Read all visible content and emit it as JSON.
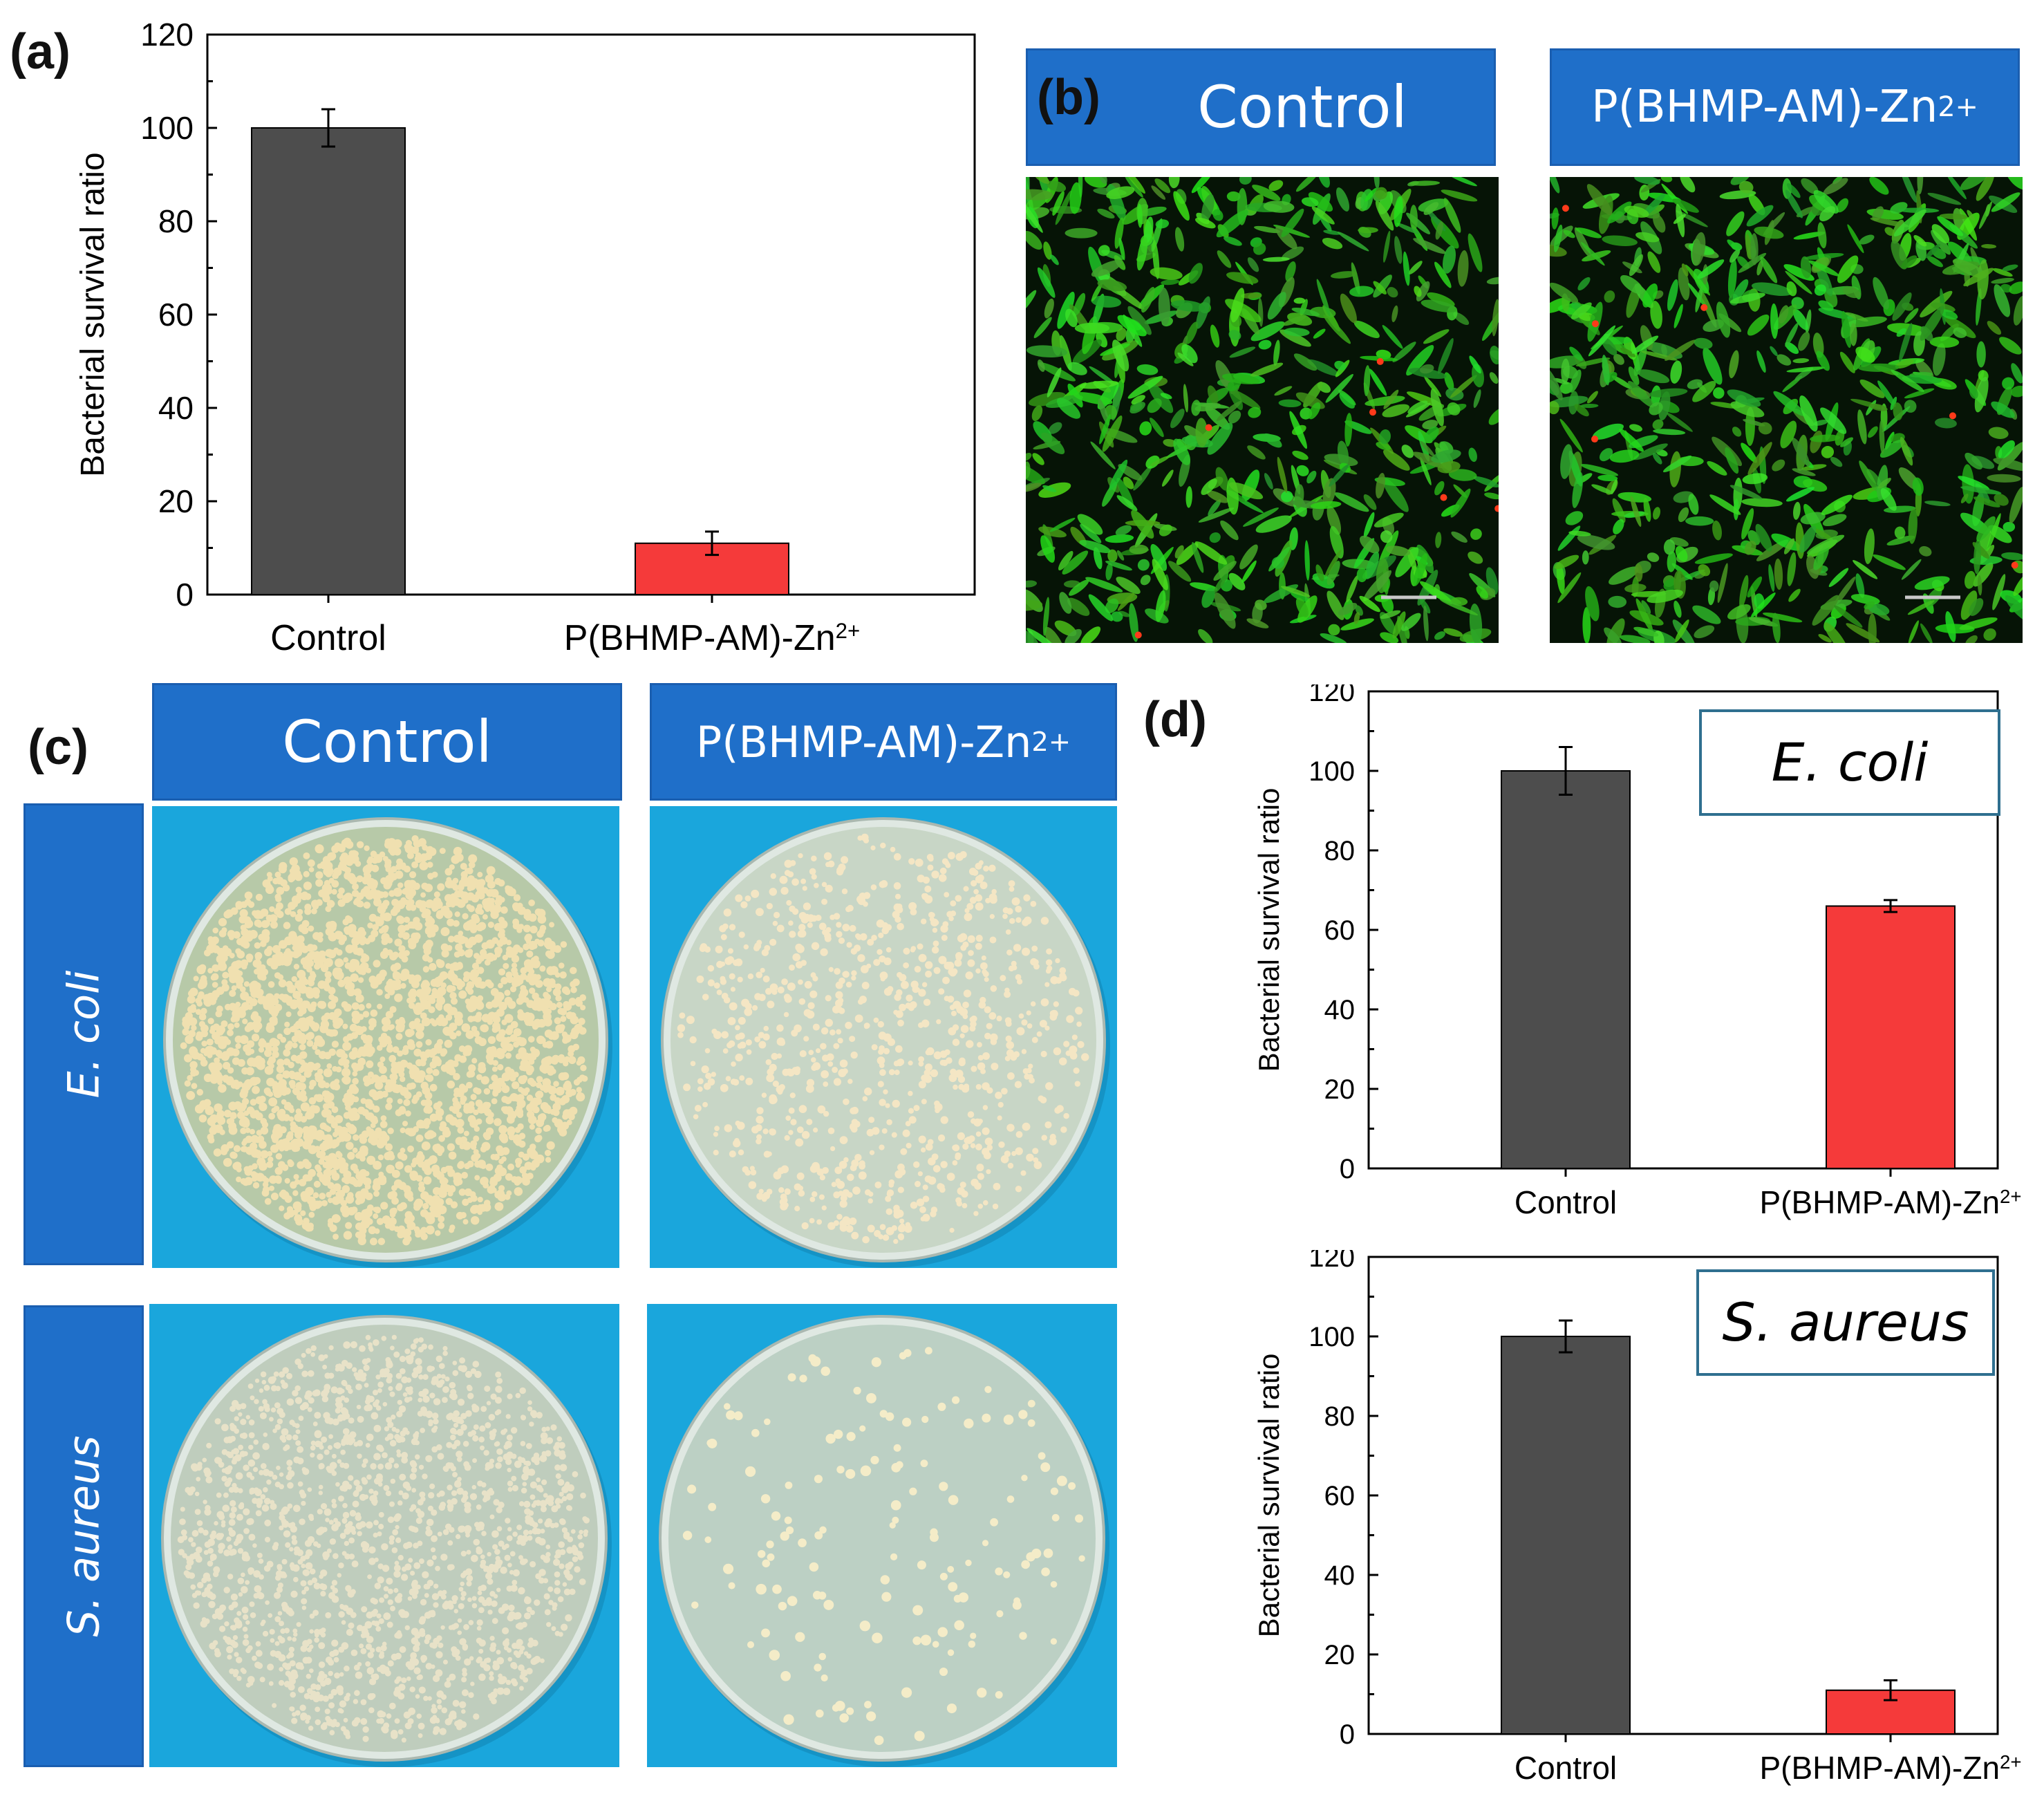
{
  "panels": {
    "a": "(a)",
    "b": "(b)",
    "c": "(c)",
    "d": "(d)"
  },
  "panel_b": {
    "headers": [
      {
        "base": "Control",
        "sup": ""
      },
      {
        "base": "P(BHMP-AM)-Zn",
        "sup": "2+"
      }
    ]
  },
  "panel_c": {
    "col_headers": [
      {
        "base": "Control",
        "sup": ""
      },
      {
        "base": "P(BHMP-AM)-Zn",
        "sup": "2+"
      }
    ],
    "row_headers": [
      "E. coli",
      "S. aureus"
    ]
  },
  "colors": {
    "control_bar": "#4d4d4d",
    "treated_bar": "#f53a3a",
    "header_blue": "#1f6fc9",
    "agar_bg": "#1aa6dc",
    "fluor_green": "#3cc23a"
  },
  "chart_data": [
    {
      "id": "a",
      "type": "bar",
      "categories": [
        "Control",
        "P(BHMP-AM)-Zn2+"
      ],
      "category_labels": [
        {
          "base": "Control",
          "sup": ""
        },
        {
          "base": "P(BHMP-AM)-Zn",
          "sup": "2+"
        }
      ],
      "values": [
        100,
        11
      ],
      "errors": [
        4,
        2.5
      ],
      "ylabel": "Bacterial survival ratio",
      "ylim": [
        0,
        120
      ],
      "yticks": [
        "0",
        "20",
        "40",
        "60",
        "80",
        "100",
        "120"
      ],
      "legend_box": ""
    },
    {
      "id": "d_top",
      "type": "bar",
      "categories": [
        "Control",
        "P(BHMP-AM)-Zn2+"
      ],
      "category_labels": [
        {
          "base": "Control",
          "sup": ""
        },
        {
          "base": "P(BHMP-AM)-Zn",
          "sup": "2+"
        }
      ],
      "values": [
        100,
        66
      ],
      "errors": [
        6,
        1.5
      ],
      "ylabel": "Bacterial survival ratio",
      "ylim": [
        0,
        120
      ],
      "yticks": [
        "0",
        "20",
        "40",
        "60",
        "80",
        "100",
        "120"
      ],
      "legend_box": "E. coli"
    },
    {
      "id": "d_bottom",
      "type": "bar",
      "categories": [
        "Control",
        "P(BHMP-AM)-Zn2+"
      ],
      "category_labels": [
        {
          "base": "Control",
          "sup": ""
        },
        {
          "base": "P(BHMP-AM)-Zn",
          "sup": "2+"
        }
      ],
      "values": [
        100,
        11
      ],
      "errors": [
        4,
        2.5
      ],
      "ylabel": "Bacterial survival ratio",
      "ylim": [
        0,
        120
      ],
      "yticks": [
        "0",
        "20",
        "40",
        "60",
        "80",
        "100",
        "120"
      ],
      "legend_box": "S. aureus"
    }
  ]
}
